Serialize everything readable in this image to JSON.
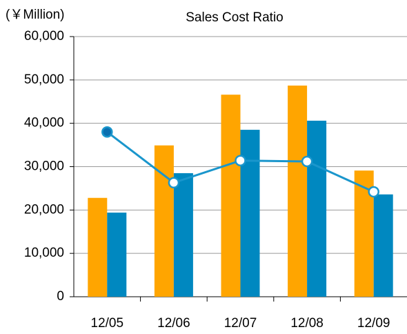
{
  "chart_data": {
    "type": "bar",
    "title": "Sales Cost Ratio",
    "unit_label": "(￥Million)",
    "categories": [
      "12/05",
      "12/06",
      "12/07",
      "12/08",
      "12/09"
    ],
    "series": [
      {
        "type": "bar",
        "color": "#ffa500",
        "values": [
          22800,
          34900,
          46600,
          48700,
          29100
        ]
      },
      {
        "type": "bar",
        "color": "#0088c0",
        "values": [
          19400,
          28500,
          38500,
          40600,
          23600
        ]
      },
      {
        "type": "line",
        "color": "#1a96cc",
        "values": [
          38000,
          26300,
          31400,
          31200,
          24200
        ]
      }
    ],
    "ylim": [
      0,
      60000
    ],
    "yticks": [
      0,
      {
        "value": 10000,
        "label": "10,000"
      },
      {
        "value": 20000,
        "label": "20,000"
      },
      {
        "value": 30000,
        "label": "30,000"
      },
      {
        "value": 40000,
        "label": "40,000"
      },
      {
        "value": 50000,
        "label": "50,000"
      },
      {
        "value": 60000,
        "label": "60,000"
      }
    ],
    "grid": true
  }
}
